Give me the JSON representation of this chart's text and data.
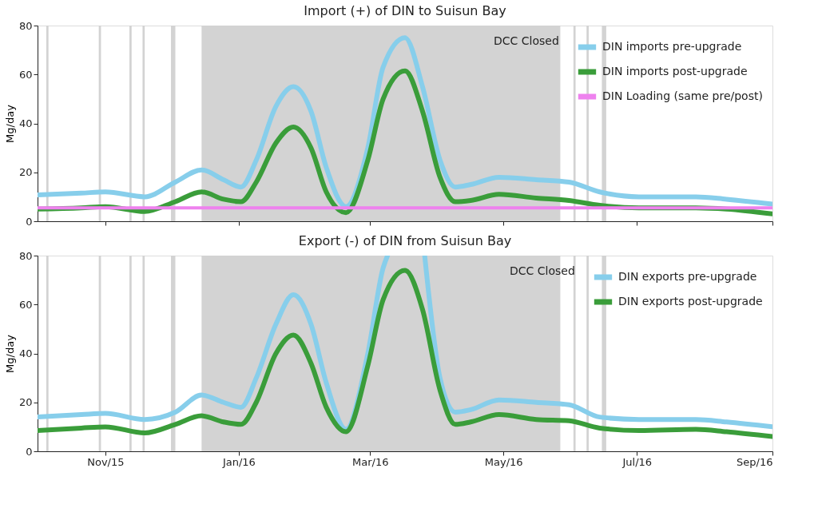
{
  "chart_data": [
    {
      "type": "line",
      "title": "Import (+) of DIN to Suisun Bay",
      "ylabel": "Mg/day",
      "x": [
        "2015-10-01",
        "2015-10-21",
        "2015-11-01",
        "2015-11-19",
        "2015-12-03",
        "2015-12-15",
        "2015-12-25",
        "2016-01-02",
        "2016-01-09",
        "2016-01-18",
        "2016-01-26",
        "2016-02-03",
        "2016-02-10",
        "2016-02-19",
        "2016-02-29",
        "2016-03-07",
        "2016-03-17",
        "2016-03-25",
        "2016-04-02",
        "2016-04-09",
        "2016-04-16",
        "2016-04-29",
        "2016-05-16",
        "2016-05-31",
        "2016-06-14",
        "2016-07-02",
        "2016-07-28",
        "2016-08-11",
        "2016-09-01"
      ],
      "series": [
        {
          "name": "DIN imports pre-upgrade",
          "color": "#87ceeb",
          "values": [
            10.8,
            11.5,
            12,
            10,
            16,
            21,
            17,
            14,
            25,
            47,
            55,
            45,
            22,
            6,
            30,
            63,
            75,
            55,
            25,
            14,
            15,
            18,
            17,
            16,
            12,
            10,
            10,
            9,
            7
          ]
        },
        {
          "name": "DIN imports post-upgrade",
          "color": "#3a9d3a",
          "values": [
            5,
            5.5,
            6,
            4,
            8,
            12,
            9,
            8,
            16,
            32,
            38.5,
            30,
            12,
            3.5,
            25,
            50,
            61.5,
            45,
            18,
            8,
            8.5,
            11,
            9.5,
            8.5,
            6.5,
            5.5,
            5.5,
            5,
            3
          ]
        },
        {
          "name": "DIN Loading (same pre/post)",
          "color": "#ee82ee",
          "x": [
            "2015-10-01",
            "2016-09-01"
          ],
          "values": [
            5.5,
            5.5
          ]
        }
      ],
      "xlim": [
        "2015-10-01",
        "2016-09-01"
      ],
      "ylim": [
        0,
        80
      ],
      "yticks": [
        0,
        20,
        40,
        60,
        80
      ],
      "tick_labels": "y",
      "legend": "top right",
      "line_style": "solid",
      "marker": "none",
      "xticks": [
        {
          "value": "2015-11-01",
          "label": null
        },
        {
          "value": "2016-01-01",
          "label": null
        },
        {
          "value": "2016-03-01",
          "label": null
        },
        {
          "value": "2016-05-01",
          "label": null
        },
        {
          "value": "2016-07-01",
          "label": null
        },
        {
          "value": "2016-09-01",
          "label": null
        }
      ],
      "bands": [
        {
          "axis": "x",
          "from": "2015-12-15",
          "to": "2016-05-27",
          "label": "DCC Closed",
          "color": "#d3d3d3"
        },
        {
          "axis": "x",
          "from": "2015-10-05",
          "to": "2015-10-06",
          "color": "#d3d3d3"
        },
        {
          "axis": "x",
          "from": "2015-10-29",
          "to": "2015-10-30",
          "color": "#d3d3d3"
        },
        {
          "axis": "x",
          "from": "2015-11-12",
          "to": "2015-11-13",
          "color": "#d3d3d3"
        },
        {
          "axis": "x",
          "from": "2015-11-18",
          "to": "2015-11-19",
          "color": "#d3d3d3"
        },
        {
          "axis": "x",
          "from": "2015-12-01",
          "to": "2015-12-03",
          "color": "#d3d3d3"
        },
        {
          "axis": "x",
          "from": "2016-06-02",
          "to": "2016-06-03",
          "color": "#d3d3d3"
        },
        {
          "axis": "x",
          "from": "2016-06-08",
          "to": "2016-06-09",
          "color": "#d3d3d3"
        },
        {
          "axis": "x",
          "from": "2016-06-15",
          "to": "2016-06-17",
          "color": "#d3d3d3"
        }
      ]
    },
    {
      "type": "line",
      "title": "Export (-) of DIN from Suisun Bay",
      "ylabel": "Mg/day",
      "x": [
        "2015-10-01",
        "2015-10-21",
        "2015-11-01",
        "2015-11-19",
        "2015-12-03",
        "2015-12-15",
        "2015-12-25",
        "2016-01-02",
        "2016-01-09",
        "2016-01-18",
        "2016-01-26",
        "2016-02-03",
        "2016-02-10",
        "2016-02-19",
        "2016-02-29",
        "2016-03-07",
        "2016-03-17",
        "2016-03-25",
        "2016-04-02",
        "2016-04-09",
        "2016-04-16",
        "2016-04-29",
        "2016-05-16",
        "2016-05-31",
        "2016-06-14",
        "2016-07-02",
        "2016-07-28",
        "2016-08-11",
        "2016-09-01"
      ],
      "series": [
        {
          "name": "DIN exports pre-upgrade",
          "color": "#87ceeb",
          "x": [
            "2015-10-01",
            "2015-10-21",
            "2015-11-01",
            "2015-11-19",
            "2015-12-03",
            "2015-12-15",
            "2015-12-25",
            "2016-01-02",
            "2016-01-09",
            "2016-01-18",
            "2016-01-26",
            "2016-02-03",
            "2016-02-10",
            "2016-02-19",
            "2016-02-29",
            "2016-03-07",
            "2016-03-09",
            "2016-03-17",
            "2016-03-26",
            "2016-04-02",
            "2016-04-09",
            "2016-04-16",
            "2016-04-29",
            "2016-05-16",
            "2016-05-31",
            "2016-06-14",
            "2016-07-02",
            "2016-07-28",
            "2016-08-11",
            "2016-09-01"
          ],
          "values": [
            14,
            15,
            15.5,
            13,
            16,
            23,
            20,
            18,
            30,
            52,
            64,
            52,
            28,
            9,
            40,
            75,
            80,
            null,
            80,
            30,
            16,
            17,
            21,
            20,
            19,
            14,
            13,
            13,
            12,
            10
          ]
        },
        {
          "name": "DIN exports post-upgrade",
          "color": "#3a9d3a",
          "values": [
            8.5,
            9.5,
            10,
            7.5,
            11,
            14.5,
            12,
            11,
            20,
            40,
            47.5,
            36,
            18,
            8,
            35,
            62,
            74,
            58,
            25,
            11,
            12,
            15,
            13,
            12.5,
            9.5,
            8.5,
            9,
            8,
            6
          ]
        }
      ],
      "xlim": [
        "2015-10-01",
        "2016-09-01"
      ],
      "xticks": [
        {
          "value": "2015-11-01",
          "label": "Nov/15"
        },
        {
          "value": "2016-01-01",
          "label": "Jan/16"
        },
        {
          "value": "2016-03-01",
          "label": "Mar/16"
        },
        {
          "value": "2016-05-01",
          "label": "May/16"
        },
        {
          "value": "2016-07-01",
          "label": "Jul/16"
        },
        {
          "value": "2016-09-01",
          "label": "Sep/16"
        }
      ],
      "ylim": [
        0,
        80
      ],
      "yticks": [
        0,
        20,
        40,
        60,
        80
      ],
      "legend": "top right",
      "line_style": "solid",
      "marker": "none",
      "bands": [
        {
          "axis": "x",
          "from": "2015-12-15",
          "to": "2016-05-27",
          "label": "DCC Closed",
          "color": "#d3d3d3"
        },
        {
          "axis": "x",
          "from": "2015-10-05",
          "to": "2015-10-06",
          "color": "#d3d3d3"
        },
        {
          "axis": "x",
          "from": "2015-10-29",
          "to": "2015-10-30",
          "color": "#d3d3d3"
        },
        {
          "axis": "x",
          "from": "2015-11-12",
          "to": "2015-11-13",
          "color": "#d3d3d3"
        },
        {
          "axis": "x",
          "from": "2015-11-18",
          "to": "2015-11-19",
          "color": "#d3d3d3"
        },
        {
          "axis": "x",
          "from": "2015-12-01",
          "to": "2015-12-03",
          "color": "#d3d3d3"
        },
        {
          "axis": "x",
          "from": "2016-06-02",
          "to": "2016-06-03",
          "color": "#d3d3d3"
        },
        {
          "axis": "x",
          "from": "2016-06-08",
          "to": "2016-06-09",
          "color": "#d3d3d3"
        },
        {
          "axis": "x",
          "from": "2016-06-15",
          "to": "2016-06-17",
          "color": "#d3d3d3"
        }
      ]
    }
  ]
}
